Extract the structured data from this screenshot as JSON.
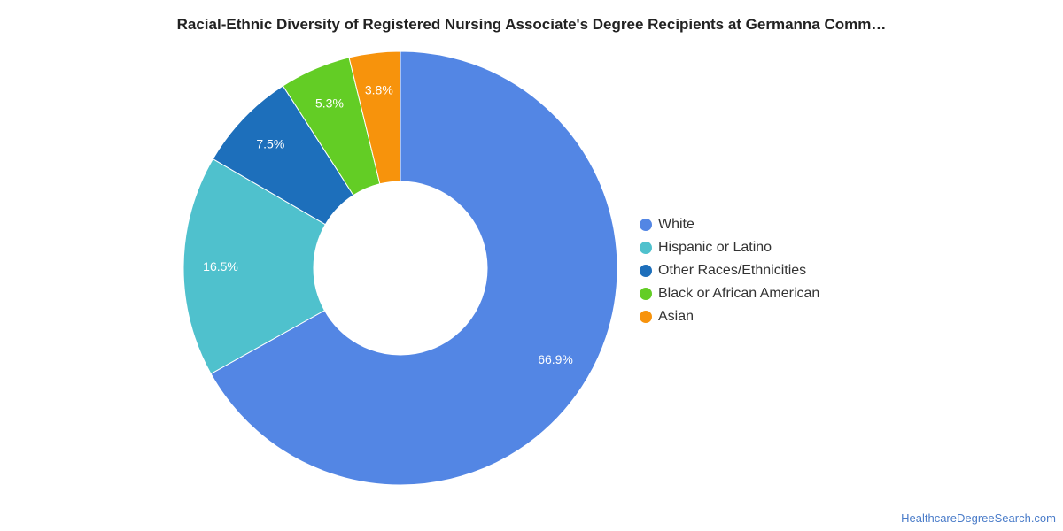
{
  "chart_data": {
    "type": "pie",
    "variant": "donut",
    "title": "Racial-Ethnic Diversity of Registered Nursing Associate's Degree Recipients at Germanna Comm…",
    "legend_position": "right",
    "slices": [
      {
        "label": "White",
        "value": 66.9,
        "value_label": "66.9%",
        "color": "#5386e4"
      },
      {
        "label": "Hispanic or Latino",
        "value": 16.5,
        "value_label": "16.5%",
        "color": "#4fc1cd"
      },
      {
        "label": "Other Races/Ethnicities",
        "value": 7.5,
        "value_label": "7.5%",
        "color": "#1d6fbb"
      },
      {
        "label": "Black or African American",
        "value": 5.3,
        "value_label": "5.3%",
        "color": "#63cd25"
      },
      {
        "label": "Asian",
        "value": 3.8,
        "value_label": "3.8%",
        "color": "#f7930c"
      }
    ]
  },
  "watermark": "HealthcareDegreeSearch.com"
}
